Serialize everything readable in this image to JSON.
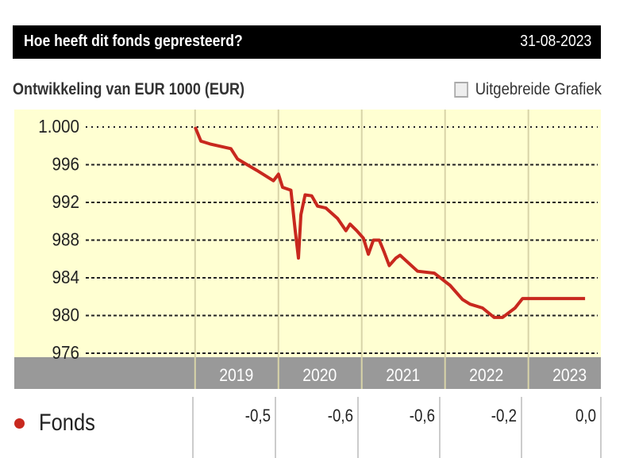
{
  "header": {
    "title": "Hoe heeft dit fonds gepresteerd?",
    "date": "31-08-2023"
  },
  "subtitle": "Ontwikkeling van EUR 1000 (EUR)",
  "extended_link": {
    "label": "Uitgebreide Grafiek",
    "icon": "line-chart-icon"
  },
  "colors": {
    "series": "#c8281e",
    "plot_bg": "#ffffd2",
    "axis_band": "#999999"
  },
  "chart_data": {
    "type": "line",
    "title": "Ontwikkeling van EUR 1000 (EUR)",
    "ylim": [
      976,
      1001.5
    ],
    "xlim": [
      2016.83,
      2023.87
    ],
    "y_ticks": [
      1000,
      996,
      992,
      988,
      984,
      980,
      976
    ],
    "y_tick_labels": [
      "1.000",
      "996",
      "992",
      "988",
      "984",
      "980",
      "976"
    ],
    "x_ticks": [
      2019,
      2020,
      2021,
      2022,
      2023
    ],
    "x_tick_labels": [
      "2019",
      "2020",
      "2021",
      "2022",
      "2023"
    ],
    "grid": true,
    "series": [
      {
        "name": "Fonds",
        "color": "#c8281e",
        "x": [
          2019.0,
          2019.07,
          2019.18,
          2019.43,
          2019.51,
          2019.74,
          2019.94,
          2020.0,
          2020.05,
          2020.15,
          2020.2,
          2020.24,
          2020.27,
          2020.32,
          2020.4,
          2020.47,
          2020.57,
          2020.71,
          2020.81,
          2020.86,
          2020.94,
          2021.02,
          2021.08,
          2021.14,
          2021.21,
          2021.27,
          2021.33,
          2021.41,
          2021.46,
          2021.67,
          2021.87,
          2022.06,
          2022.21,
          2022.3,
          2022.45,
          2022.59,
          2022.69,
          2022.84,
          2022.93,
          2023.68
        ],
        "y": [
          1000,
          998.5,
          998.2,
          997.7,
          996.6,
          995.4,
          994.3,
          995.0,
          993.6,
          993.3,
          989.1,
          986.1,
          990.7,
          992.8,
          992.7,
          991.6,
          991.4,
          990.3,
          989.0,
          989.7,
          989.0,
          988.2,
          986.5,
          988.0,
          988.0,
          986.7,
          985.3,
          986.1,
          986.4,
          984.7,
          984.5,
          983.2,
          981.7,
          981.2,
          980.8,
          979.8,
          979.8,
          980.8,
          981.8,
          981.8
        ]
      }
    ]
  },
  "table": {
    "label": "Fonds",
    "values": [
      "-0,5",
      "-0,6",
      "-0,6",
      "-0,2",
      "0,0"
    ]
  }
}
